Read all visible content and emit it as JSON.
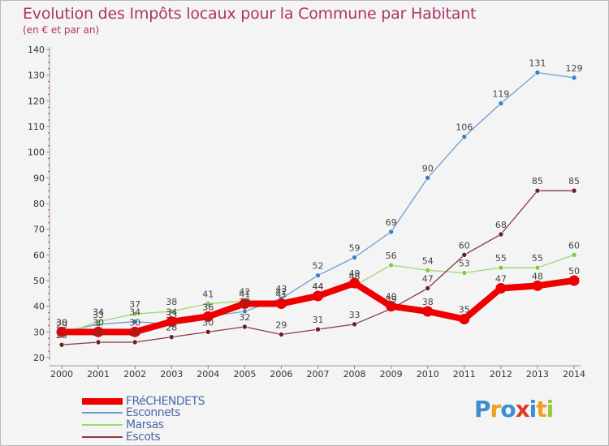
{
  "chart_data": {
    "type": "line",
    "title": "Evolution des Impôts locaux pour la Commune par Habitant",
    "subtitle": "(en € et par an)",
    "x": [
      2000,
      2001,
      2002,
      2003,
      2004,
      2005,
      2006,
      2007,
      2008,
      2009,
      2010,
      2011,
      2012,
      2013,
      2014
    ],
    "ylim": [
      20,
      140
    ],
    "yticks": [
      20,
      30,
      40,
      50,
      60,
      70,
      80,
      90,
      100,
      110,
      120,
      130,
      140
    ],
    "grid": false,
    "series": [
      {
        "name": "Esconnets",
        "color": "#6a9fd4",
        "marker": "#3b7fc4",
        "width": 1.3,
        "values": [
          30,
          33,
          34,
          33,
          36,
          38,
          43,
          52,
          59,
          69,
          90,
          106,
          119,
          131,
          129
        ]
      },
      {
        "name": "Marsas",
        "color": "#9ed870",
        "marker": "#7ccc44",
        "width": 1.3,
        "values": [
          29,
          34,
          37,
          38,
          41,
          42,
          42,
          44,
          48,
          56,
          54,
          53,
          55,
          55,
          60
        ]
      },
      {
        "name": "Escots",
        "color": "#8a3a42",
        "marker": "#6b1e28",
        "width": 1.3,
        "values": [
          25,
          26,
          26,
          28,
          30,
          32,
          29,
          31,
          33,
          39,
          47,
          60,
          68,
          85,
          85
        ]
      },
      {
        "name": "FRéCHENDETS",
        "color": "#ee0000",
        "marker": "#ee0000",
        "width": 8,
        "values": [
          30,
          30,
          30,
          34,
          36,
          41,
          41,
          44,
          49,
          40,
          38,
          35,
          47,
          48,
          50
        ]
      }
    ],
    "legend_position": "bottom-left"
  },
  "legend": [
    {
      "name": "FRéCHENDETS",
      "color": "#ee0000"
    },
    {
      "name": "Esconnets",
      "color": "#6a9fd4"
    },
    {
      "name": "Marsas",
      "color": "#9ed870"
    },
    {
      "name": "Escots",
      "color": "#8a3a42"
    }
  ],
  "logo": {
    "letters": [
      "P",
      "r",
      "o",
      "x",
      "i",
      "t",
      "i"
    ],
    "colors": [
      "#3b8ed0",
      "#f0a020",
      "#3b8ed0",
      "#e03a2a",
      "#3b8ed0",
      "#f0a020",
      "#9ac83c"
    ]
  }
}
